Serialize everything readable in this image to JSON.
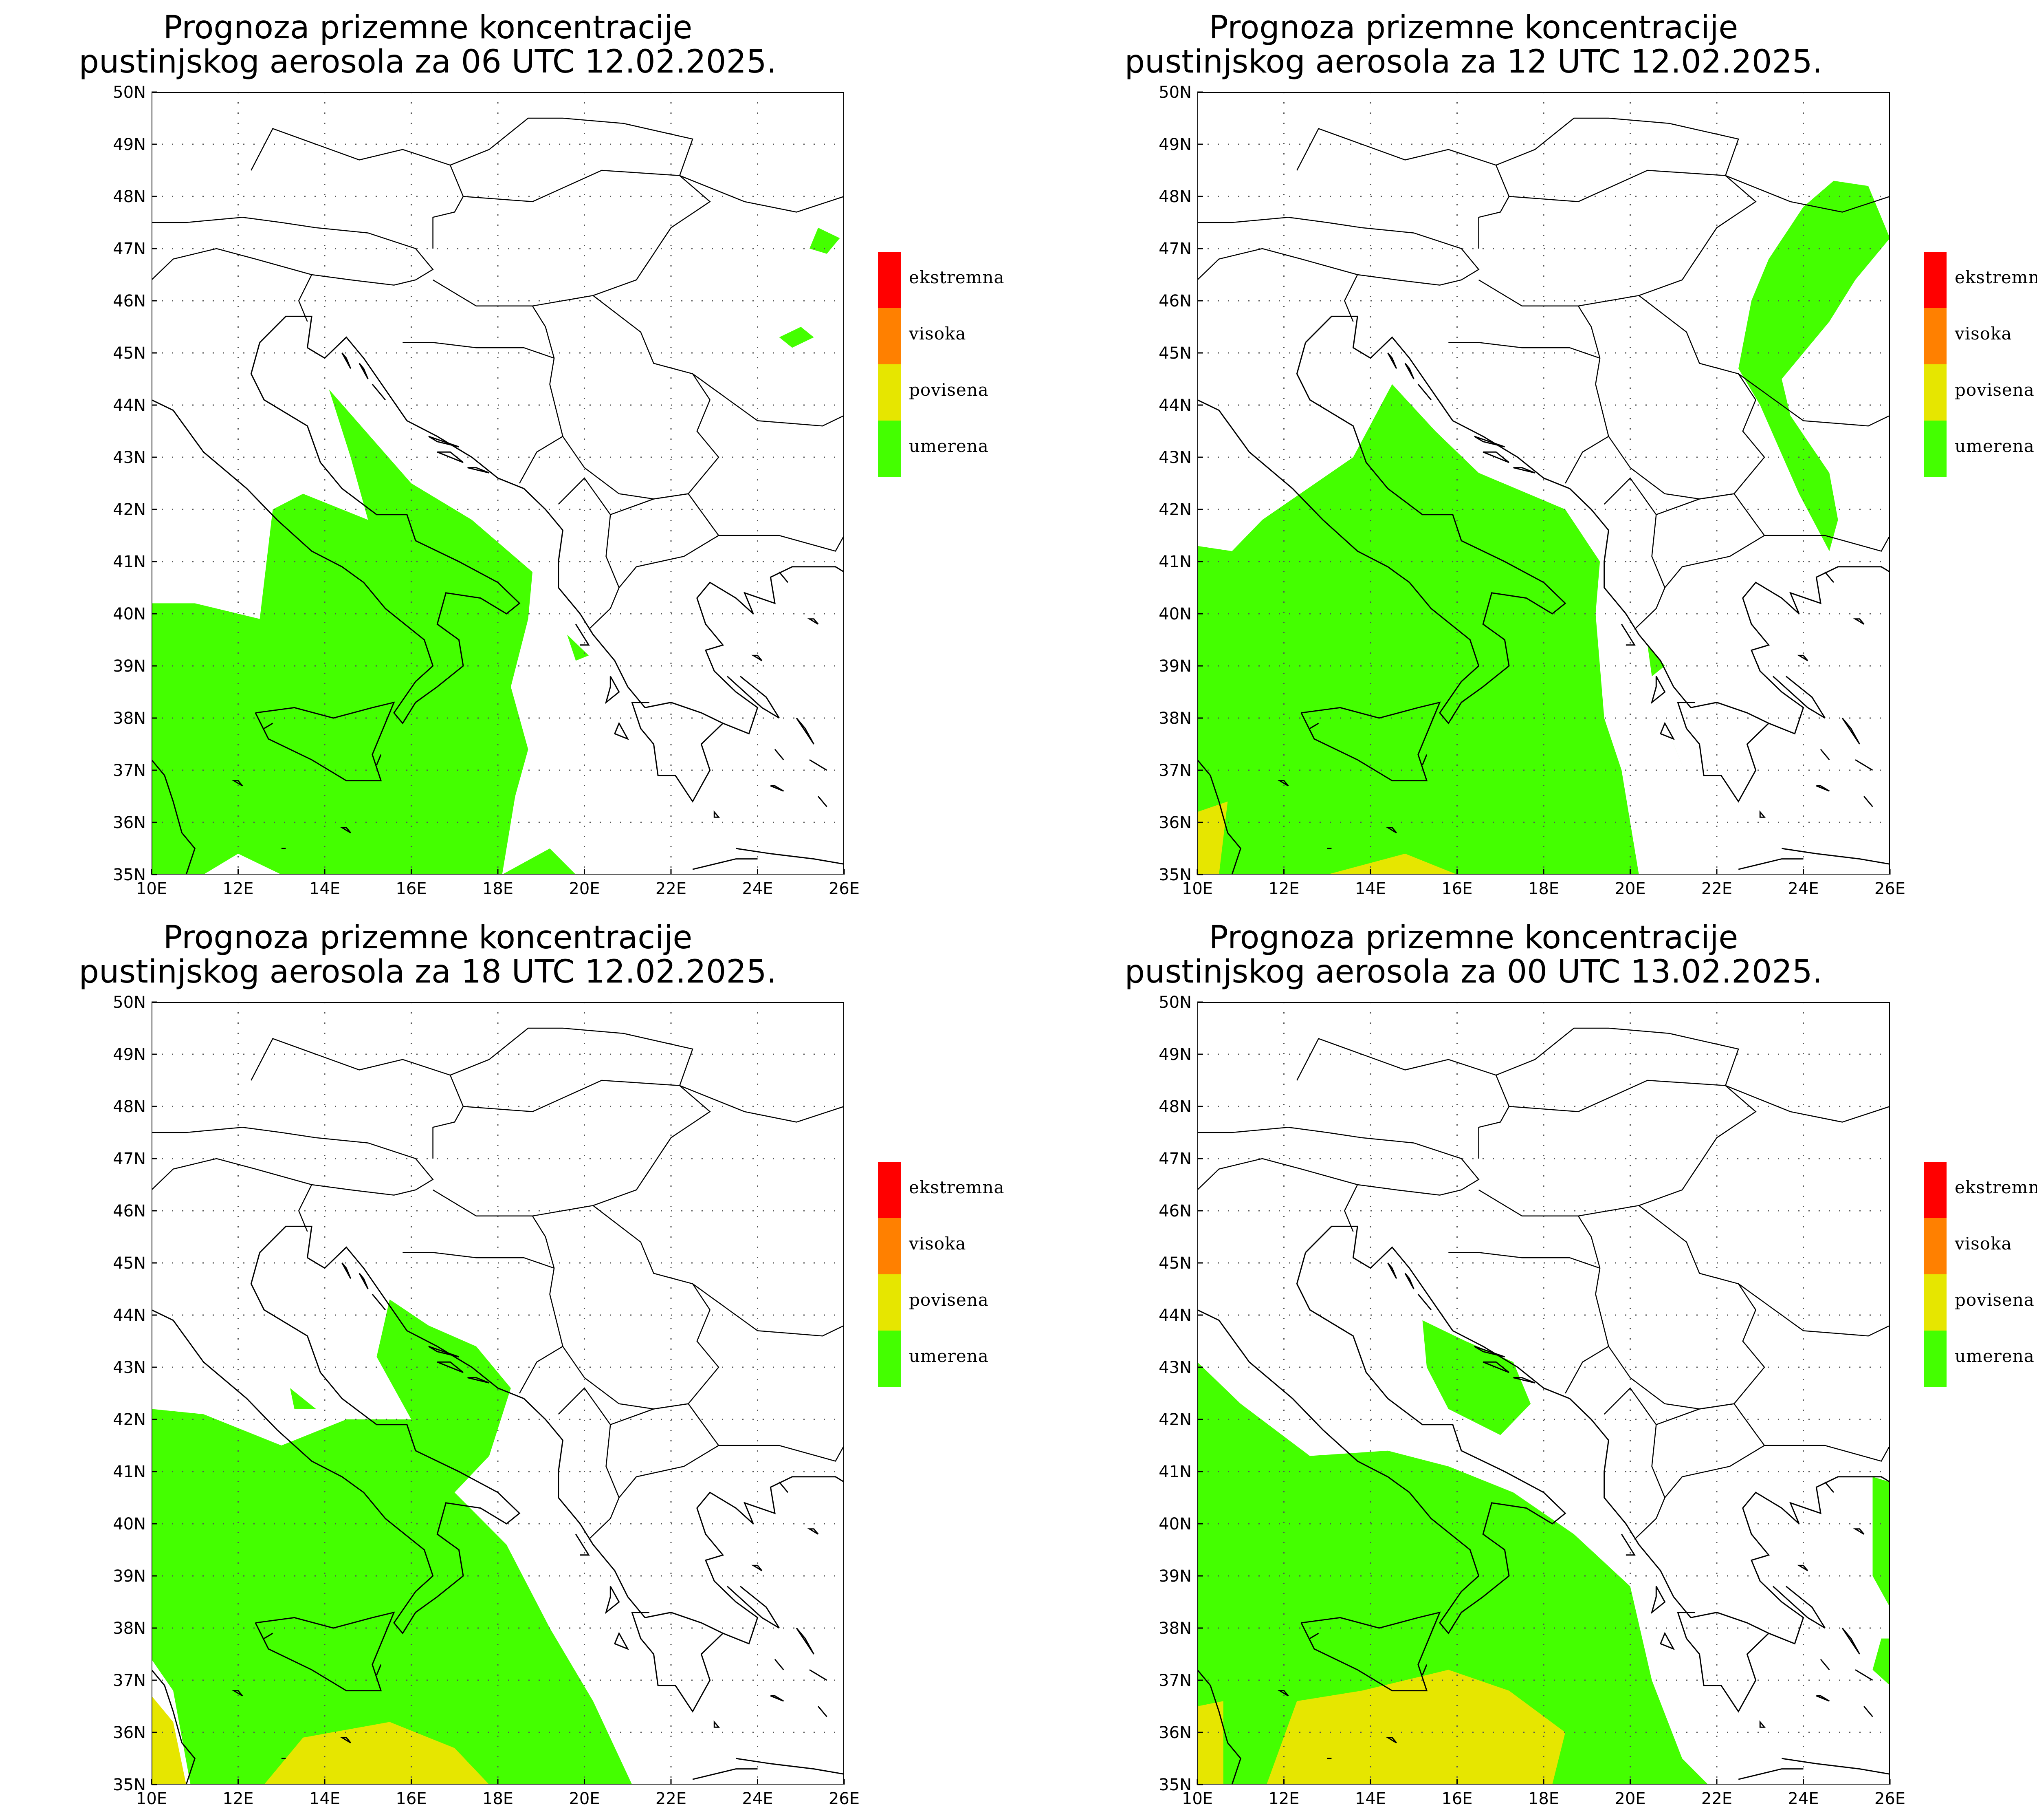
{
  "panels": [
    {
      "title_line1": "Prognoza prizemne koncentracije",
      "title_line2": "pustinjskog aerosola za 06 UTC 12.02.2025.",
      "zones": [
        {
          "level": "umerena",
          "coords": [
            [
              10,
              40.2
            ],
            [
              11,
              40.2
            ],
            [
              12.5,
              39.9
            ],
            [
              12.8,
              42
            ],
            [
              13.5,
              42.3
            ],
            [
              15,
              41.8
            ],
            [
              14.6,
              43
            ],
            [
              14.1,
              44.3
            ],
            [
              16,
              42.5
            ],
            [
              17.4,
              41.8
            ],
            [
              18.8,
              40.8
            ],
            [
              18.7,
              39.9
            ],
            [
              18.3,
              38.6
            ],
            [
              18.7,
              37.4
            ],
            [
              18.4,
              36.5
            ],
            [
              18.1,
              35
            ],
            [
              19.2,
              35.5
            ],
            [
              19.8,
              35
            ],
            [
              13,
              35
            ],
            [
              12,
              35.4
            ],
            [
              11.2,
              35
            ],
            [
              10,
              35
            ]
          ]
        },
        {
          "level": "umerena",
          "coords": [
            [
              25.4,
              47.4
            ],
            [
              25.9,
              47.2
            ],
            [
              25.6,
              46.9
            ],
            [
              25.2,
              47.0
            ]
          ]
        },
        {
          "level": "umerena",
          "coords": [
            [
              24.5,
              45.3
            ],
            [
              25,
              45.5
            ],
            [
              25.3,
              45.3
            ],
            [
              24.8,
              45.1
            ]
          ]
        },
        {
          "level": "umerena",
          "coords": [
            [
              19.6,
              39.6
            ],
            [
              20.1,
              39.2
            ],
            [
              19.8,
              39.1
            ]
          ]
        }
      ]
    },
    {
      "title_line1": "Prognoza prizemne koncentracije",
      "title_line2": "pustinjskog aerosola za 12 UTC 12.02.2025.",
      "zones": [
        {
          "level": "umerena",
          "coords": [
            [
              10,
              41.3
            ],
            [
              10.8,
              41.2
            ],
            [
              11.5,
              41.8
            ],
            [
              13.6,
              43
            ],
            [
              14.5,
              44.4
            ],
            [
              15.5,
              43.5
            ],
            [
              16.5,
              42.7
            ],
            [
              18.5,
              42
            ],
            [
              19.3,
              41
            ],
            [
              19.2,
              40
            ],
            [
              19.4,
              38
            ],
            [
              19.8,
              37
            ],
            [
              20.2,
              35
            ],
            [
              10,
              35
            ]
          ]
        },
        {
          "level": "povisena",
          "coords": [
            [
              10,
              36.2
            ],
            [
              10.7,
              36.4
            ],
            [
              10.5,
              35
            ],
            [
              10,
              35
            ]
          ]
        },
        {
          "level": "povisena",
          "coords": [
            [
              13,
              35
            ],
            [
              14.8,
              35.4
            ],
            [
              16,
              35
            ]
          ]
        },
        {
          "level": "umerena",
          "coords": [
            [
              24,
              47.8
            ],
            [
              24.7,
              48.3
            ],
            [
              25.5,
              48.2
            ],
            [
              26,
              47.2
            ],
            [
              25.2,
              46.4
            ],
            [
              24.6,
              45.6
            ],
            [
              23.5,
              44.5
            ],
            [
              23.7,
              43.8
            ],
            [
              24.6,
              42.7
            ],
            [
              24.8,
              41.8
            ],
            [
              24.6,
              41.2
            ],
            [
              23.9,
              42.3
            ],
            [
              23,
              44
            ],
            [
              22.5,
              44.7
            ],
            [
              22.8,
              46
            ],
            [
              23.2,
              46.8
            ]
          ]
        },
        {
          "level": "umerena",
          "coords": [
            [
              20.4,
              39.4
            ],
            [
              20.8,
              39.0
            ],
            [
              20.5,
              38.8
            ]
          ]
        },
        {
          "level": "umerena",
          "coords": [
            [
              20.8,
              37.9
            ],
            [
              21.3,
              36.9
            ],
            [
              21,
              37.5
            ]
          ]
        }
      ]
    },
    {
      "title_line1": "Prognoza prizemne koncentracije",
      "title_line2": "pustinjskog aerosola za 18 UTC 12.02.2025.",
      "zones": [
        {
          "level": "umerena",
          "coords": [
            [
              10,
              42.2
            ],
            [
              11.2,
              42.1
            ],
            [
              13,
              41.5
            ],
            [
              14.5,
              42
            ],
            [
              16,
              42
            ],
            [
              15.2,
              43.2
            ],
            [
              15.5,
              44.3
            ],
            [
              16.4,
              43.8
            ],
            [
              17.5,
              43.4
            ],
            [
              18.3,
              42.6
            ],
            [
              17.8,
              41.3
            ],
            [
              17,
              40.6
            ],
            [
              18.2,
              39.6
            ],
            [
              19.2,
              38
            ],
            [
              20.2,
              36.6
            ],
            [
              21.1,
              35
            ],
            [
              10.9,
              35
            ],
            [
              10.5,
              36.8
            ],
            [
              10,
              37.4
            ]
          ]
        },
        {
          "level": "povisena",
          "coords": [
            [
              12.6,
              35
            ],
            [
              13.5,
              35.9
            ],
            [
              15.5,
              36.2
            ],
            [
              17,
              35.7
            ],
            [
              17.8,
              35
            ],
            [
              18.5,
              35
            ]
          ]
        },
        {
          "level": "povisena",
          "coords": [
            [
              10,
              36.7
            ],
            [
              10.5,
              36.2
            ],
            [
              10.8,
              35
            ],
            [
              10,
              35
            ]
          ]
        },
        {
          "level": "umerena",
          "coords": [
            [
              13.2,
              42.6
            ],
            [
              13.8,
              42.2
            ],
            [
              13.3,
              42.2
            ]
          ]
        }
      ]
    },
    {
      "title_line1": "Prognoza prizemne koncentracije",
      "title_line2": "pustinjskog aerosola za 00 UTC 13.02.2025.",
      "zones": [
        {
          "level": "umerena",
          "coords": [
            [
              10,
              43.1
            ],
            [
              11,
              42.3
            ],
            [
              12.6,
              41.3
            ],
            [
              14.4,
              41.4
            ],
            [
              15.8,
              41.1
            ],
            [
              17.3,
              40.6
            ],
            [
              18.7,
              39.8
            ],
            [
              20,
              38.8
            ],
            [
              20.5,
              37
            ],
            [
              21.2,
              35.5
            ],
            [
              21.8,
              35
            ],
            [
              10,
              35
            ]
          ]
        },
        {
          "level": "povisena",
          "coords": [
            [
              11.6,
              35
            ],
            [
              12.3,
              36.6
            ],
            [
              13.8,
              36.8
            ],
            [
              15.8,
              37.2
            ],
            [
              17.2,
              36.8
            ],
            [
              18.5,
              36
            ],
            [
              18.2,
              35
            ]
          ]
        },
        {
          "level": "povisena",
          "coords": [
            [
              10,
              36.5
            ],
            [
              10.6,
              36.6
            ],
            [
              10.6,
              35
            ],
            [
              10,
              35
            ]
          ]
        },
        {
          "level": "umerena",
          "coords": [
            [
              15.2,
              43.9
            ],
            [
              16.2,
              43.5
            ],
            [
              17.3,
              43.1
            ],
            [
              17.7,
              42.3
            ],
            [
              17,
              41.7
            ],
            [
              15.8,
              42.2
            ],
            [
              15.3,
              43
            ]
          ]
        },
        {
          "level": "umerena",
          "coords": [
            [
              25.6,
              40.9
            ],
            [
              26,
              40.8
            ],
            [
              26,
              38.4
            ],
            [
              25.6,
              39
            ]
          ]
        },
        {
          "level": "umerena",
          "coords": [
            [
              25.8,
              37.8
            ],
            [
              26,
              37.8
            ],
            [
              26,
              36.9
            ],
            [
              25.6,
              37.2
            ]
          ]
        }
      ]
    }
  ],
  "axes": {
    "lon_labels": [
      "10E",
      "12E",
      "14E",
      "16E",
      "18E",
      "20E",
      "22E",
      "24E",
      "26E"
    ],
    "lat_labels": [
      "35N",
      "36N",
      "37N",
      "38N",
      "39N",
      "40N",
      "41N",
      "42N",
      "43N",
      "44N",
      "45N",
      "46N",
      "47N",
      "48N",
      "49N",
      "50N"
    ],
    "lon_range": [
      10,
      26
    ],
    "lat_range": [
      35,
      50
    ]
  },
  "legend": [
    {
      "label": "ekstremna",
      "color": "#ff0000"
    },
    {
      "label": "visoka",
      "color": "#ff8000"
    },
    {
      "label": "povisena",
      "color": "#e6e600"
    },
    {
      "label": "umerena",
      "color": "#44ff00"
    }
  ],
  "colors": {
    "umerena": "#44ff00",
    "povisena": "#e6e600",
    "visoka": "#ff8000",
    "ekstremna": "#ff0000",
    "coast": "#000000",
    "grid": "#555555"
  }
}
